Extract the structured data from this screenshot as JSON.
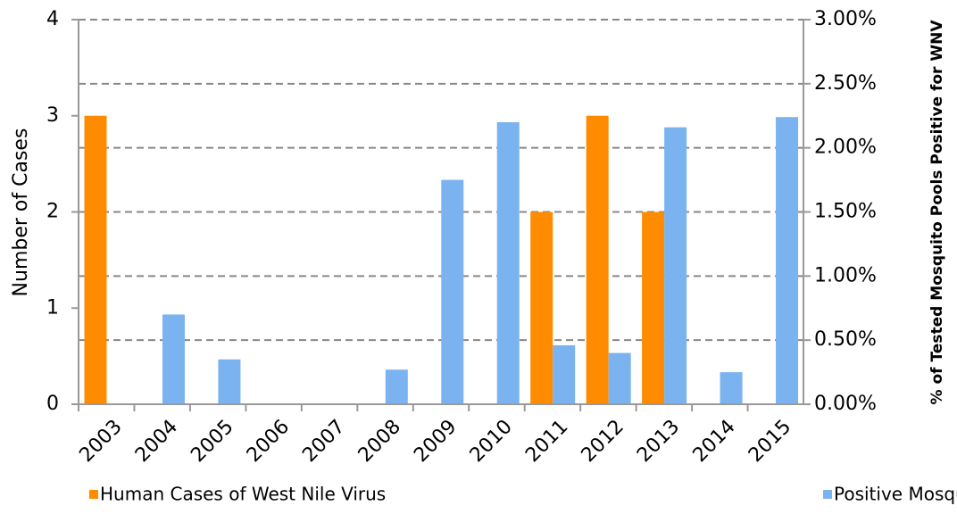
{
  "chart_data": {
    "type": "bar",
    "categories": [
      "2003",
      "2004",
      "2005",
      "2006",
      "2007",
      "2008",
      "2009",
      "2010",
      "2011",
      "2012",
      "2013",
      "2014",
      "2015"
    ],
    "series": [
      {
        "name": "Human Cases of West Nile Virus",
        "color": "#ff8c00",
        "values": [
          3,
          0,
          0,
          0,
          0,
          0,
          0,
          0,
          2,
          3,
          2,
          0,
          0
        ]
      },
      {
        "name": "Positive Mosquito Pools",
        "color": "#7ab3f0",
        "axis": "y2",
        "values": [
          0,
          0.7,
          0.35,
          0,
          0,
          0.27,
          1.75,
          2.2,
          0.46,
          0.4,
          2.16,
          0.25,
          2.24
        ]
      }
    ],
    "ylabel": "Number of Cases",
    "y2label": "% of Tested Mosquito Pools Positive for WNV",
    "ylim": [
      0,
      4
    ],
    "yticks": [
      0,
      1,
      2,
      3,
      4
    ],
    "y2lim": [
      0,
      3
    ],
    "y2ticks": [
      {
        "value": 0,
        "label": "0.00%"
      },
      {
        "value": 0.5,
        "label": "0.50%"
      },
      {
        "value": 1,
        "label": "1.00%"
      },
      {
        "value": 1.5,
        "label": "1.50%"
      },
      {
        "value": 2,
        "label": "2.00%"
      },
      {
        "value": 2.5,
        "label": "2.50%"
      },
      {
        "value": 3,
        "label": "3.00%"
      }
    ],
    "grid": true
  }
}
